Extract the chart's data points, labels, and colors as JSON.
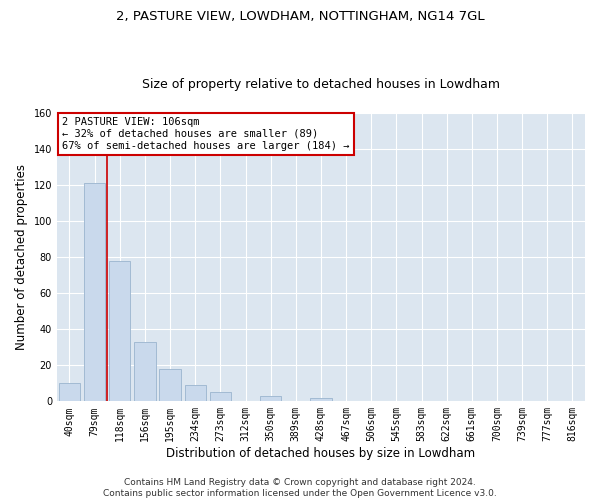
{
  "title": "2, PASTURE VIEW, LOWDHAM, NOTTINGHAM, NG14 7GL",
  "subtitle": "Size of property relative to detached houses in Lowdham",
  "xlabel": "Distribution of detached houses by size in Lowdham",
  "ylabel": "Number of detached properties",
  "bar_color": "#c9d9ec",
  "bar_edge_color": "#9ab4ce",
  "background_color": "#dce6f0",
  "grid_color": "#ffffff",
  "bins": [
    "40sqm",
    "79sqm",
    "118sqm",
    "156sqm",
    "195sqm",
    "234sqm",
    "273sqm",
    "312sqm",
    "350sqm",
    "389sqm",
    "428sqm",
    "467sqm",
    "506sqm",
    "545sqm",
    "583sqm",
    "622sqm",
    "661sqm",
    "700sqm",
    "739sqm",
    "777sqm",
    "816sqm"
  ],
  "values": [
    10,
    121,
    78,
    33,
    18,
    9,
    5,
    0,
    3,
    0,
    2,
    0,
    0,
    0,
    0,
    0,
    0,
    0,
    0,
    0,
    0
  ],
  "ylim": [
    0,
    160
  ],
  "yticks": [
    0,
    20,
    40,
    60,
    80,
    100,
    120,
    140,
    160
  ],
  "vline_x": 1.5,
  "vline_color": "#cc0000",
  "annotation_text": "2 PASTURE VIEW: 106sqm\n← 32% of detached houses are smaller (89)\n67% of semi-detached houses are larger (184) →",
  "annotation_box_color": "#ffffff",
  "annotation_box_edge": "#cc0000",
  "footer_text": "Contains HM Land Registry data © Crown copyright and database right 2024.\nContains public sector information licensed under the Open Government Licence v3.0.",
  "title_fontsize": 9.5,
  "subtitle_fontsize": 9,
  "axis_label_fontsize": 8.5,
  "tick_fontsize": 7,
  "annotation_fontsize": 7.5,
  "footer_fontsize": 6.5
}
